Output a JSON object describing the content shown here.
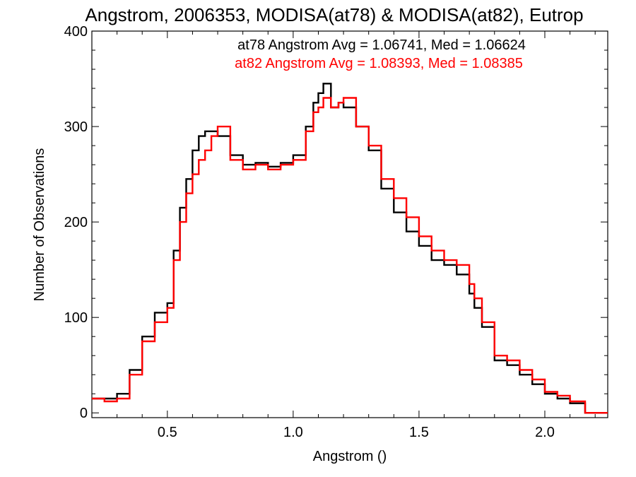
{
  "chart_data": {
    "type": "line",
    "title": "Angstrom, 2006353, MODISA(at78) & MODISA(at82), Eutrop",
    "xlabel": "Angstrom ()",
    "ylabel": "Number of Observations",
    "xlim": [
      0.2,
      2.25
    ],
    "ylim": [
      -5,
      400
    ],
    "xticks": [
      "0.5",
      "1.0",
      "1.5",
      "2.0"
    ],
    "yticks": [
      "0",
      "100",
      "200",
      "300",
      "400"
    ],
    "annotations": [
      {
        "text": "at78 Angstrom Avg = 1.06741, Med = 1.06624",
        "color": "#000000"
      },
      {
        "text": "at82 Angstrom Avg = 1.08393, Med = 1.08385",
        "color": "#ff0000"
      }
    ],
    "series": [
      {
        "color": "#000000",
        "x": [
          0.2,
          0.25,
          0.3,
          0.35,
          0.4,
          0.45,
          0.5,
          0.525,
          0.55,
          0.575,
          0.6,
          0.625,
          0.65,
          0.675,
          0.7,
          0.75,
          0.8,
          0.85,
          0.9,
          0.95,
          1.0,
          1.05,
          1.08,
          1.1,
          1.12,
          1.15,
          1.18,
          1.2,
          1.25,
          1.3,
          1.35,
          1.4,
          1.45,
          1.5,
          1.55,
          1.6,
          1.65,
          1.7,
          1.72,
          1.75,
          1.8,
          1.85,
          1.9,
          1.95,
          2.0,
          2.05,
          2.1,
          2.15,
          2.16,
          2.2,
          2.25
        ],
        "y": [
          15,
          15,
          20,
          45,
          80,
          105,
          115,
          170,
          215,
          245,
          275,
          290,
          295,
          295,
          290,
          270,
          260,
          262,
          258,
          262,
          270,
          300,
          325,
          335,
          345,
          320,
          325,
          320,
          300,
          275,
          235,
          210,
          190,
          175,
          160,
          155,
          145,
          125,
          110,
          90,
          55,
          50,
          40,
          30,
          20,
          15,
          10,
          10,
          0,
          0,
          0
        ]
      },
      {
        "color": "#ff0000",
        "x": [
          0.2,
          0.25,
          0.3,
          0.35,
          0.4,
          0.45,
          0.5,
          0.525,
          0.55,
          0.575,
          0.6,
          0.625,
          0.65,
          0.675,
          0.7,
          0.75,
          0.8,
          0.85,
          0.9,
          0.95,
          1.0,
          1.05,
          1.08,
          1.1,
          1.12,
          1.15,
          1.18,
          1.2,
          1.25,
          1.3,
          1.35,
          1.4,
          1.45,
          1.5,
          1.55,
          1.6,
          1.65,
          1.7,
          1.72,
          1.75,
          1.8,
          1.85,
          1.9,
          1.95,
          2.0,
          2.05,
          2.1,
          2.15,
          2.16,
          2.2,
          2.25
        ],
        "y": [
          15,
          12,
          15,
          40,
          75,
          95,
          110,
          160,
          200,
          230,
          250,
          265,
          275,
          290,
          300,
          265,
          255,
          260,
          255,
          260,
          265,
          295,
          315,
          320,
          330,
          320,
          325,
          330,
          300,
          280,
          245,
          225,
          205,
          185,
          170,
          160,
          155,
          135,
          120,
          95,
          60,
          55,
          45,
          35,
          22,
          18,
          12,
          12,
          0,
          0,
          0
        ]
      }
    ]
  }
}
